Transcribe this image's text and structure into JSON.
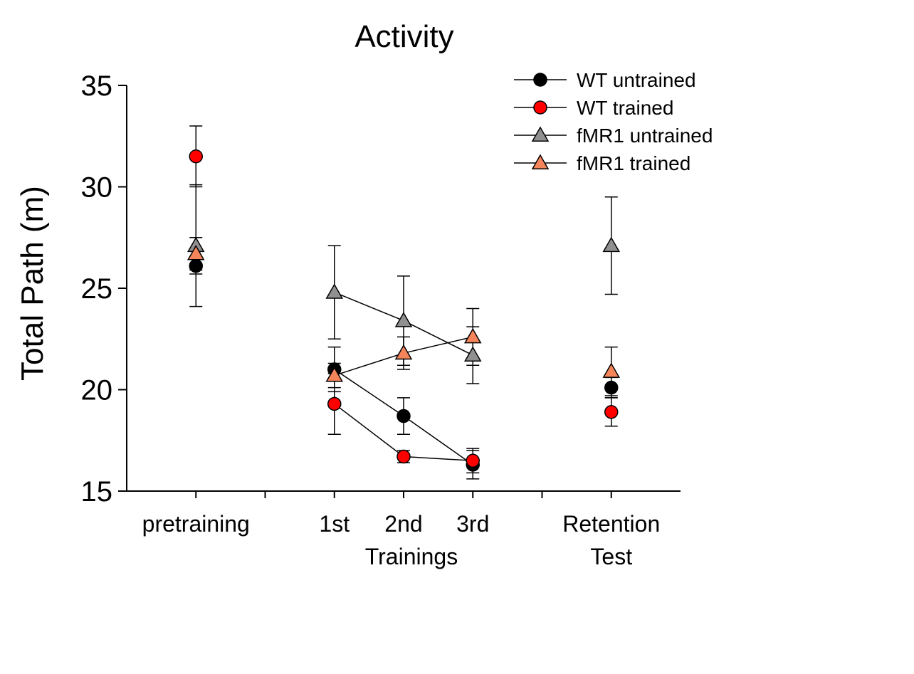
{
  "chart_data": {
    "type": "line",
    "title": "Activity",
    "ylabel": "Total Path (m)",
    "ylim": [
      15,
      35
    ],
    "yticks": [
      15,
      20,
      25,
      30,
      35
    ],
    "xlim": [
      0,
      8
    ],
    "x_tick_labels": [
      {
        "x": 1,
        "lines": [
          "pretraining"
        ]
      },
      {
        "x": 3,
        "lines": [
          "1st"
        ]
      },
      {
        "x": 4,
        "lines": [
          "2nd"
        ]
      },
      {
        "x": 5,
        "lines": [
          "3rd"
        ]
      },
      {
        "x": 7,
        "lines": [
          "Retention",
          "Test"
        ]
      }
    ],
    "x_group_label": "Trainings",
    "grid": false,
    "legend_position": "top-right",
    "series": [
      {
        "name": "WT untrained",
        "marker": "circle",
        "color": "#000000",
        "segments": [
          [
            1
          ],
          [
            3,
            4,
            5
          ],
          [
            7
          ]
        ],
        "points": [
          {
            "x": 1,
            "y": 26.1,
            "err": 0.4
          },
          {
            "x": 3,
            "y": 21.0,
            "err": 1.1
          },
          {
            "x": 4,
            "y": 18.7,
            "err": 0.9
          },
          {
            "x": 5,
            "y": 16.3,
            "err": 0.7
          },
          {
            "x": 7,
            "y": 20.1,
            "err": 0.5
          }
        ]
      },
      {
        "name": "WT trained",
        "marker": "circle",
        "color": "#ff0000",
        "segments": [
          [
            1
          ],
          [
            3,
            4,
            5
          ],
          [
            7
          ]
        ],
        "points": [
          {
            "x": 1,
            "y": 31.5,
            "err": 1.5
          },
          {
            "x": 3,
            "y": 19.3,
            "err": 1.5
          },
          {
            "x": 4,
            "y": 16.7,
            "err": 0.3
          },
          {
            "x": 5,
            "y": 16.5,
            "err": 0.6
          },
          {
            "x": 7,
            "y": 18.9,
            "err": 0.7
          }
        ]
      },
      {
        "name": "fMR1 untrained",
        "marker": "triangle",
        "color": "#909090",
        "segments": [
          [
            1
          ],
          [
            3,
            4,
            5
          ],
          [
            7
          ]
        ],
        "points": [
          {
            "x": 1,
            "y": 27.1,
            "err": 3.0
          },
          {
            "x": 3,
            "y": 24.8,
            "err": 2.3
          },
          {
            "x": 4,
            "y": 23.4,
            "err": 2.2
          },
          {
            "x": 5,
            "y": 21.7,
            "err": 1.4
          },
          {
            "x": 7,
            "y": 27.1,
            "err": 2.4
          }
        ]
      },
      {
        "name": "fMR1 trained",
        "marker": "triangle",
        "color": "#f4845a",
        "segments": [
          [
            1
          ],
          [
            3,
            4,
            5
          ],
          [
            7
          ]
        ],
        "points": [
          {
            "x": 1,
            "y": 26.7,
            "err": 0.8
          },
          {
            "x": 3,
            "y": 20.7,
            "err": 0.6
          },
          {
            "x": 4,
            "y": 21.8,
            "err": 0.8
          },
          {
            "x": 5,
            "y": 22.6,
            "err": 1.4
          },
          {
            "x": 7,
            "y": 20.9,
            "err": 1.2
          }
        ]
      }
    ]
  }
}
